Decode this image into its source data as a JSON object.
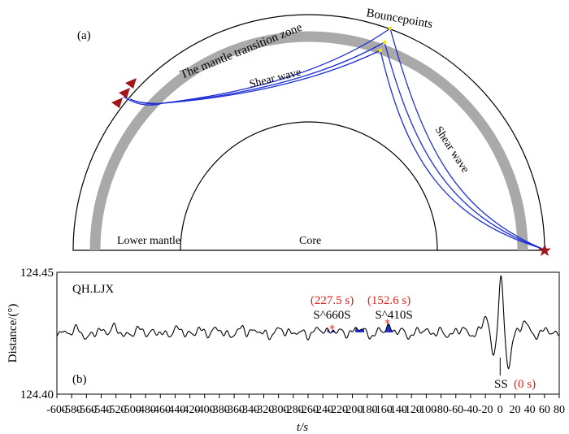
{
  "panel_a": {
    "label": "(a)",
    "bouncepoints_label": "Bouncepoints",
    "transition_zone_label": "The mantle  transition  zone",
    "shear_wave_label_1": "Shear wave",
    "shear_wave_label_2": "Shear wave",
    "lower_mantle_label": "Lower mantle",
    "core_label": "Core",
    "colors": {
      "ray": "#1f2fd6",
      "transition_zone": "#a9a9a9",
      "station": "#a0161b",
      "bounce_point": "#f3e600"
    }
  },
  "panel_b": {
    "label": "(b)",
    "station": "QH.LJX",
    "y_axis_label": "Distance/(°)",
    "y_top_tick": "124.45",
    "y_bottom_tick": "124.40",
    "x_axis_label": "t/s",
    "x_ticks": [
      "-600",
      "-580",
      "-560",
      "-540",
      "-520",
      "-500",
      "-480",
      "-460",
      "-440",
      "-420",
      "-400",
      "-380",
      "-360",
      "-340",
      "-320",
      "-300",
      "-280",
      "-260",
      "-240",
      "-220",
      "-200",
      "-180",
      "-160",
      "-140",
      "-120",
      "-100",
      "-80",
      "-60",
      "-40",
      "-20",
      "0",
      "20",
      "40",
      "60",
      "80"
    ],
    "x_range": [
      -600,
      80
    ],
    "phases": {
      "s660": {
        "label": "S^660S",
        "time_label": "(227.5 s)",
        "t": -227.5
      },
      "s410": {
        "label": "S^410S",
        "time_label": "(152.6 s)",
        "t": -152.6
      },
      "ss": {
        "label": "SS",
        "time_label": "(0 s)",
        "t": 0
      }
    },
    "colors": {
      "annotation": "#e0201b",
      "fill": "#1f2fd6",
      "trace": "#000000"
    }
  }
}
